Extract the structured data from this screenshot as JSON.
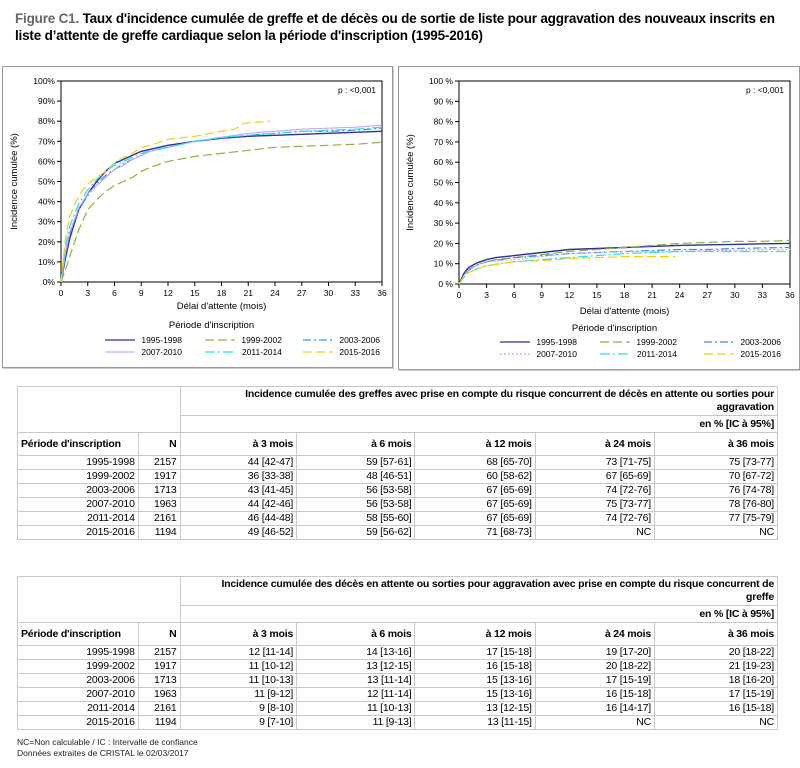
{
  "title": {
    "figure_label": "Figure C1.",
    "text": "Taux d'incidence cumulée de greffe et de décès ou de sortie de liste pour aggravation des nouveaux inscrits en liste d’attente de greffe cardiaque selon la période d'inscription (1995-2016)"
  },
  "colors": {
    "1995-1998": "#2e3192",
    "1999-2002": "#8cb43c",
    "2003-2006": "#3d8fe0",
    "2007-2010": "#c8a6f2",
    "2011-2014": "#22e0f0",
    "2015-2016": "#f3cf10"
  },
  "chart_data": [
    {
      "type": "line",
      "xlabel": "Délai d'attente (mois)",
      "ylabel": "Incidence cumulée (%)",
      "annotation": "p : <0,001",
      "legend_title": "Période d'inscription",
      "legend_position": "bottom",
      "xlim": [
        0,
        36
      ],
      "ylim": [
        0,
        100
      ],
      "xticks": [
        "0",
        "3",
        "6",
        "9",
        "12",
        "15",
        "18",
        "21",
        "24",
        "27",
        "30",
        "33",
        "36"
      ],
      "yticks": [
        "0%",
        "10%",
        "20%",
        "30%",
        "40%",
        "50%",
        "60%",
        "70%",
        "80%",
        "90%",
        "100%"
      ],
      "series": [
        {
          "name": "1995-1998",
          "style": "solid",
          "x": [
            0,
            0.5,
            1,
            2,
            3,
            4,
            5,
            6,
            7,
            8,
            9,
            10,
            12,
            15,
            18,
            21,
            24,
            27,
            30,
            33,
            36
          ],
          "y": [
            0,
            12,
            22,
            36,
            44,
            50,
            55,
            59,
            61,
            63,
            65,
            66,
            68,
            70,
            71.5,
            72.5,
            73,
            73.5,
            74,
            74.5,
            75
          ]
        },
        {
          "name": "1999-2002",
          "style": "longdash",
          "x": [
            0,
            0.5,
            1,
            2,
            3,
            4,
            5,
            6,
            7,
            8,
            9,
            10,
            12,
            15,
            18,
            21,
            24,
            27,
            30,
            33,
            36
          ],
          "y": [
            0,
            6,
            13,
            26,
            36,
            41,
            45,
            48,
            50,
            52,
            55,
            57,
            60,
            62.5,
            64,
            65.5,
            67,
            67.5,
            68,
            68.5,
            69.5
          ]
        },
        {
          "name": "2003-2006",
          "style": "dashdot",
          "x": [
            0,
            0.5,
            1,
            2,
            3,
            4,
            5,
            6,
            7,
            8,
            9,
            10,
            12,
            15,
            18,
            21,
            24,
            27,
            30,
            33,
            36
          ],
          "y": [
            0,
            14,
            24,
            36,
            43,
            49,
            53,
            56,
            59,
            61,
            63,
            65,
            67,
            70,
            71.5,
            73,
            74,
            75,
            75,
            75.5,
            76.5
          ]
        },
        {
          "name": "2007-2010",
          "style": "solid-light",
          "x": [
            0,
            0.5,
            1,
            2,
            3,
            4,
            5,
            6,
            7,
            8,
            9,
            10,
            12,
            15,
            18,
            21,
            24,
            27,
            30,
            33,
            36
          ],
          "y": [
            0,
            15,
            25,
            37,
            44,
            48,
            52,
            56,
            58,
            61,
            63,
            65,
            67,
            70,
            72,
            74,
            75,
            76,
            76.5,
            77,
            78
          ]
        },
        {
          "name": "2011-2014",
          "style": "dashdot-long",
          "x": [
            0,
            0.5,
            1,
            2,
            3,
            4,
            5,
            6,
            7,
            8,
            9,
            10,
            12,
            15,
            18,
            21,
            24,
            27,
            30,
            33,
            36
          ],
          "y": [
            0,
            18,
            28,
            39,
            46,
            51,
            55,
            58,
            60,
            62,
            64,
            65.5,
            67,
            70,
            72,
            73,
            74,
            75,
            75.5,
            76,
            77
          ]
        },
        {
          "name": "2015-2016",
          "style": "longdash",
          "x": [
            0,
            0.5,
            1,
            2,
            3,
            4,
            5,
            6,
            7,
            8,
            9,
            10,
            12,
            15,
            18,
            19.5,
            20.5,
            23.5
          ],
          "y": [
            0,
            22,
            33,
            43,
            49,
            52,
            55,
            59,
            62,
            64,
            67,
            68,
            71,
            72.5,
            75,
            76,
            79,
            80
          ]
        }
      ]
    },
    {
      "type": "line",
      "xlabel": "Délai d'attente (mois)",
      "ylabel": "Incidence cumulée (%)",
      "annotation": "p : <0,001",
      "legend_title": "Période d'inscription",
      "legend_position": "bottom",
      "xlim": [
        0,
        36
      ],
      "ylim": [
        0,
        100
      ],
      "xticks": [
        "0",
        "3",
        "6",
        "9",
        "12",
        "15",
        "18",
        "21",
        "24",
        "27",
        "30",
        "33",
        "36"
      ],
      "yticks": [
        "0 %",
        "10 %",
        "20 %",
        "30 %",
        "40 %",
        "50 %",
        "60 %",
        "70 %",
        "80 %",
        "90 %",
        "100 %"
      ],
      "series": [
        {
          "name": "1995-1998",
          "style": "solid",
          "x": [
            0,
            0.5,
            1,
            2,
            3,
            4,
            5,
            6,
            9,
            12,
            15,
            18,
            21,
            24,
            27,
            30,
            33,
            36
          ],
          "y": [
            0,
            5,
            8,
            10.5,
            12,
            13,
            13.5,
            14,
            15.5,
            17,
            17.5,
            18,
            18.5,
            19,
            19.3,
            19.5,
            19.8,
            20
          ]
        },
        {
          "name": "1999-2002",
          "style": "longdash",
          "x": [
            0,
            0.5,
            1,
            2,
            3,
            4,
            6,
            9,
            12,
            15,
            18,
            21,
            24,
            27,
            30,
            33,
            36
          ],
          "y": [
            0,
            4,
            6.5,
            9.5,
            11,
            12,
            13,
            14.5,
            16,
            17,
            18,
            19,
            20,
            20.5,
            21,
            21,
            21.5
          ]
        },
        {
          "name": "2003-2006",
          "style": "dashdot",
          "x": [
            0,
            0.5,
            1,
            2,
            3,
            6,
            9,
            12,
            15,
            18,
            21,
            24,
            27,
            30,
            33,
            36
          ],
          "y": [
            0,
            4,
            7,
            9.5,
            11,
            13,
            14,
            15,
            15.5,
            16,
            16.5,
            17,
            17,
            17.5,
            17.8,
            18
          ]
        },
        {
          "name": "2007-2010",
          "style": "dotted",
          "x": [
            0,
            0.5,
            1,
            2,
            3,
            6,
            9,
            12,
            15,
            18,
            21,
            24,
            27,
            30,
            33,
            36
          ],
          "y": [
            0,
            4,
            6.5,
            9.5,
            11,
            12,
            13.5,
            15,
            15.5,
            16,
            16,
            16,
            16.5,
            16.5,
            17,
            17
          ]
        },
        {
          "name": "2011-2014",
          "style": "dashdot-long",
          "x": [
            0,
            0.5,
            1,
            2,
            3,
            6,
            9,
            12,
            15,
            18,
            21,
            24,
            27,
            30,
            33,
            36
          ],
          "y": [
            0,
            3,
            5.5,
            7.5,
            9,
            11,
            12,
            13,
            14,
            15,
            15.5,
            16,
            16,
            16,
            16,
            16
          ]
        },
        {
          "name": "2015-2016",
          "style": "longdash",
          "x": [
            0,
            0.5,
            1,
            2,
            3,
            6,
            9,
            12,
            15,
            18,
            21,
            23.5
          ],
          "y": [
            0,
            3,
            5.5,
            7.5,
            9,
            11,
            11.5,
            12.5,
            13,
            13.5,
            13.5,
            13.5
          ]
        }
      ]
    }
  ],
  "tables": [
    {
      "title": "Incidence cumulée des greffes avec prise en compte du risque concurrent de décès en attente ou sorties pour aggravation",
      "unit": "en % [IC à 95%]",
      "headers": [
        "Période d'inscription",
        "N",
        "à 3 mois",
        "à 6 mois",
        "à 12 mois",
        "à 24 mois",
        "à 36 mois"
      ],
      "rows": [
        [
          "1995-1998",
          "2157",
          "44 [42-47]",
          "59 [57-61]",
          "68 [65-70]",
          "73 [71-75]",
          "75 [73-77]"
        ],
        [
          "1999-2002",
          "1917",
          "36 [33-38]",
          "48 [46-51]",
          "60 [58-62]",
          "67 [65-69]",
          "70 [67-72]"
        ],
        [
          "2003-2006",
          "1713",
          "43 [41-45]",
          "56 [53-58]",
          "67 [65-69]",
          "74 [72-76]",
          "76 [74-78]"
        ],
        [
          "2007-2010",
          "1963",
          "44 [42-46]",
          "56 [53-58]",
          "67 [65-69]",
          "75 [73-77]",
          "78 [76-80]"
        ],
        [
          "2011-2014",
          "2161",
          "46 [44-48]",
          "58 [55-60]",
          "67 [65-69]",
          "74 [72-76]",
          "77 [75-79]"
        ],
        [
          "2015-2016",
          "1194",
          "49 [46-52]",
          "59 [56-62]",
          "71 [68-73]",
          "NC",
          "NC"
        ]
      ]
    },
    {
      "title": "Incidence cumulée des décès en attente ou sorties pour aggravation avec prise en compte du risque concurrent de greffe",
      "unit": "en % [IC à 95%]",
      "headers": [
        "Période d'inscription",
        "N",
        "à 3 mois",
        "à 6 mois",
        "à 12 mois",
        "à 24 mois",
        "à 36 mois"
      ],
      "rows": [
        [
          "1995-1998",
          "2157",
          "12 [11-14]",
          "14 [13-16]",
          "17 [15-18]",
          "19 [17-20]",
          "20 [18-22]"
        ],
        [
          "1999-2002",
          "1917",
          "11 [10-12]",
          "13 [12-15]",
          "16 [15-18]",
          "20 [18-22]",
          "21 [19-23]"
        ],
        [
          "2003-2006",
          "1713",
          "11 [10-13]",
          "13 [11-14]",
          "15 [13-16]",
          "17 [15-19]",
          "18 [16-20]"
        ],
        [
          "2007-2010",
          "1963",
          "11 [9-12]",
          "12 [11-14]",
          "15 [13-16]",
          "16 [15-18]",
          "17 [15-19]"
        ],
        [
          "2011-2014",
          "2161",
          "9 [8-10]",
          "11 [10-13]",
          "13 [12-15]",
          "16 [14-17]",
          "16 [15-18]"
        ],
        [
          "2015-2016",
          "1194",
          "9 [7-10]",
          "11 [9-13]",
          "13 [11-15]",
          "NC",
          "NC"
        ]
      ]
    }
  ],
  "footnotes": [
    "NC=Non calculable / IC : Intervalle de confiance",
    "Données extraites de CRISTAL le 02/03/2017"
  ]
}
